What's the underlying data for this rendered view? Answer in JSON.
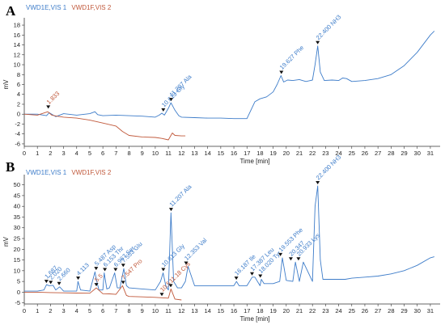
{
  "colors": {
    "vis1": "#3d7cc9",
    "vis2": "#c0583a",
    "axis": "#333333"
  },
  "chart_data": [
    {
      "panel": "A",
      "type": "line",
      "legend": [
        "VWD1E,VIS 1",
        "VWD1F,VIS 2"
      ],
      "xlabel": "Time [min]",
      "ylabel": "mV",
      "xlim": [
        0,
        31.5
      ],
      "ylim": [
        -6.5,
        18.5
      ],
      "xticks": [
        0,
        1,
        2,
        3,
        4,
        5,
        6,
        7,
        8,
        9,
        10,
        11,
        12,
        13,
        14,
        15,
        16,
        17,
        18,
        19,
        20,
        21,
        22,
        23,
        24,
        25,
        26,
        27,
        28,
        29,
        30,
        31
      ],
      "yticks": [
        -6,
        -4,
        -2,
        0,
        2,
        4,
        6,
        8,
        10,
        12,
        14,
        16,
        18
      ],
      "series": [
        {
          "name": "VWD1E,VIS 1",
          "x": [
            0,
            1,
            1.7,
            1.9,
            2.4,
            3,
            4,
            5,
            5.4,
            5.6,
            6,
            7,
            8,
            9,
            10,
            10.3,
            10.5,
            10.7,
            11.0,
            11.2,
            11.5,
            11.8,
            12,
            13,
            14,
            15,
            16,
            17,
            17.3,
            17.6,
            18,
            18.5,
            19,
            19.3,
            19.6,
            19.8,
            20.1,
            20.5,
            21,
            21.5,
            22,
            22.2,
            22.4,
            22.6,
            22.9,
            23.5,
            24,
            24.3,
            24.6,
            25,
            26,
            27,
            28,
            29,
            30,
            31,
            31.3
          ],
          "values": [
            0,
            0,
            -0.3,
            0.3,
            -0.5,
            0.1,
            -0.2,
            0.1,
            0.5,
            -0.1,
            -0.3,
            -0.2,
            -0.3,
            -0.4,
            -0.6,
            -0.2,
            0.2,
            -0.2,
            1.2,
            2.3,
            0.8,
            -0.3,
            -0.6,
            -0.7,
            -0.8,
            -0.8,
            -0.9,
            -0.9,
            0.8,
            2.5,
            3.1,
            3.5,
            4.5,
            6,
            7.8,
            6.5,
            6.9,
            6.8,
            7,
            6.6,
            6.9,
            10,
            13.8,
            8.5,
            6.8,
            6.9,
            6.8,
            7.3,
            7.2,
            6.6,
            6.8,
            7.2,
            8,
            9.8,
            12.5,
            16,
            16.8
          ]
        },
        {
          "name": "VWD1F,VIS 2",
          "x": [
            0,
            1,
            1.8,
            2.1,
            2.5,
            3,
            4,
            5,
            6,
            7,
            7.5,
            8,
            9,
            10,
            10.5,
            11,
            11.3,
            11.5,
            12,
            12.3
          ],
          "values": [
            0,
            -0.2,
            0.5,
            -0.2,
            -0.4,
            -0.6,
            -0.8,
            -1.2,
            -1.8,
            -2.4,
            -3.5,
            -4.3,
            -4.6,
            -4.7,
            -4.9,
            -5.2,
            -3.8,
            -4.3,
            -4.4,
            -4.4
          ]
        }
      ],
      "peaks": [
        {
          "series": 1,
          "time": 1.833,
          "label": "1.833",
          "y": 0.8
        },
        {
          "series": 0,
          "time": 10.613,
          "label": "10.613 Gly",
          "y": 0.2
        },
        {
          "series": 0,
          "time": 11.207,
          "label": "11.207 Ala",
          "y": 2.3
        },
        {
          "series": 0,
          "time": 19.627,
          "label": "19.627 Phe",
          "y": 7.8
        },
        {
          "series": 0,
          "time": 22.4,
          "label": "22.400 NH3",
          "y": 13.8
        }
      ]
    },
    {
      "panel": "B",
      "type": "line",
      "legend": [
        "VWD1E,VIS 1",
        "VWD1F,VIS 2"
      ],
      "xlabel": "Time [min]",
      "ylabel": "mV",
      "xlim": [
        0,
        31.5
      ],
      "ylim": [
        -5.5,
        52.5
      ],
      "xticks": [
        0,
        1,
        2,
        3,
        4,
        5,
        6,
        7,
        8,
        9,
        10,
        11,
        12,
        13,
        14,
        15,
        16,
        17,
        18,
        19,
        20,
        21,
        22,
        23,
        24,
        25,
        26,
        27,
        28,
        29,
        30,
        31
      ],
      "yticks": [
        -5,
        0,
        5,
        10,
        15,
        20,
        25,
        30,
        35,
        40,
        45,
        50
      ],
      "series": [
        {
          "name": "VWD1E,VIS 1",
          "x": [
            0,
            1,
            1.5,
            1.7,
            1.9,
            2.2,
            2.4,
            2.7,
            3,
            4,
            4.1,
            4.3,
            5,
            5.4,
            5.5,
            5.7,
            6,
            6.1,
            6.3,
            6.5,
            6.9,
            7.1,
            7.3,
            7.6,
            7.8,
            8,
            9,
            10,
            10.4,
            10.6,
            10.8,
            11,
            11.2,
            11.4,
            11.7,
            12,
            12.3,
            12.5,
            13,
            14,
            15,
            16,
            16.2,
            16.4,
            17,
            17.4,
            17.6,
            18,
            18.1,
            18.3,
            19,
            19.5,
            19.7,
            20,
            20.5,
            20.7,
            21,
            21.3,
            22,
            22.2,
            22.4,
            22.6,
            22.8,
            23.5,
            24,
            24.5,
            25,
            26,
            27,
            28,
            29,
            30,
            31,
            31.3
          ],
          "values": [
            0.5,
            0.5,
            1,
            3.5,
            3,
            3.2,
            1,
            2.5,
            0.5,
            0.5,
            5,
            1,
            0.5,
            9.5,
            6,
            1,
            1,
            9,
            1.5,
            2,
            9,
            2,
            2,
            11,
            3,
            2,
            1.5,
            1,
            5,
            9,
            3,
            1,
            37,
            5,
            2,
            2,
            5,
            12,
            3,
            3,
            3,
            3,
            5,
            3,
            3,
            7,
            7,
            3,
            6,
            4,
            4,
            5,
            16,
            5.5,
            5,
            14,
            5,
            14,
            5,
            40,
            49.5,
            15,
            6,
            6,
            6,
            6,
            6.5,
            7,
            7.5,
            8.5,
            10,
            12.5,
            16,
            16.5
          ]
        },
        {
          "name": "VWD1F,VIS 2",
          "x": [
            0,
            1,
            2,
            3,
            4,
            5,
            5.5,
            6,
            6.5,
            7,
            7.5,
            7.8,
            8,
            9,
            10,
            10.5,
            11,
            11.2,
            11.5,
            12
          ],
          "values": [
            0,
            0,
            -0.2,
            -0.3,
            -0.4,
            -0.5,
            2,
            -0.7,
            -0.8,
            -1,
            3,
            -1.5,
            -2,
            -2.2,
            -2.4,
            -2.6,
            -2.8,
            1.5,
            -3.2,
            -3.6
          ]
        }
      ],
      "peaks": [
        {
          "series": 0,
          "time": 1.687,
          "label": "1.687",
          "y": 3.5
        },
        {
          "series": 0,
          "time": 2.02,
          "label": "2.020",
          "y": 3
        },
        {
          "series": 0,
          "time": 2.66,
          "label": "2.660",
          "y": 2.5
        },
        {
          "series": 0,
          "time": 4.113,
          "label": "4.113",
          "y": 5
        },
        {
          "series": 0,
          "time": 5.487,
          "label": "5.487 Asp",
          "y": 9.5
        },
        {
          "series": 0,
          "time": 6.153,
          "label": "6.153 Thr",
          "y": 9
        },
        {
          "series": 0,
          "time": 6.967,
          "label": "6.967 Ser",
          "y": 9
        },
        {
          "series": 0,
          "time": 7.553,
          "label": "7.553 Glu",
          "y": 11
        },
        {
          "series": 1,
          "time": 5.5,
          "label": "5.5",
          "y": 2
        },
        {
          "series": 1,
          "time": 7.547,
          "label": "7.547 Pro",
          "y": 3
        },
        {
          "series": 0,
          "time": 10.613,
          "label": "10.613 Gly",
          "y": 9
        },
        {
          "series": 0,
          "time": 11.207,
          "label": "11.207 Ala",
          "y": 37
        },
        {
          "series": 1,
          "time": 10.5,
          "label": "10.5",
          "y": -2.6
        },
        {
          "series": 1,
          "time": 11.18,
          "label": "11.18 Cys",
          "y": 1.5
        },
        {
          "series": 0,
          "time": 12.353,
          "label": "12.353 Val",
          "y": 12
        },
        {
          "series": 0,
          "time": 16.187,
          "label": "16.187 Ile",
          "y": 5
        },
        {
          "series": 0,
          "time": 17.387,
          "label": "17.387 Leu",
          "y": 7
        },
        {
          "series": 0,
          "time": 18.02,
          "label": "18.020 Tyr",
          "y": 6
        },
        {
          "series": 0,
          "time": 19.553,
          "label": "19.553 Phe",
          "y": 16
        },
        {
          "series": 0,
          "time": 20.347,
          "label": "20.347",
          "y": 14
        },
        {
          "series": 0,
          "time": 20.933,
          "label": "20.933 Lys",
          "y": 14
        },
        {
          "series": 0,
          "time": 22.4,
          "label": "22.400 NH3",
          "y": 49.5
        }
      ]
    }
  ]
}
